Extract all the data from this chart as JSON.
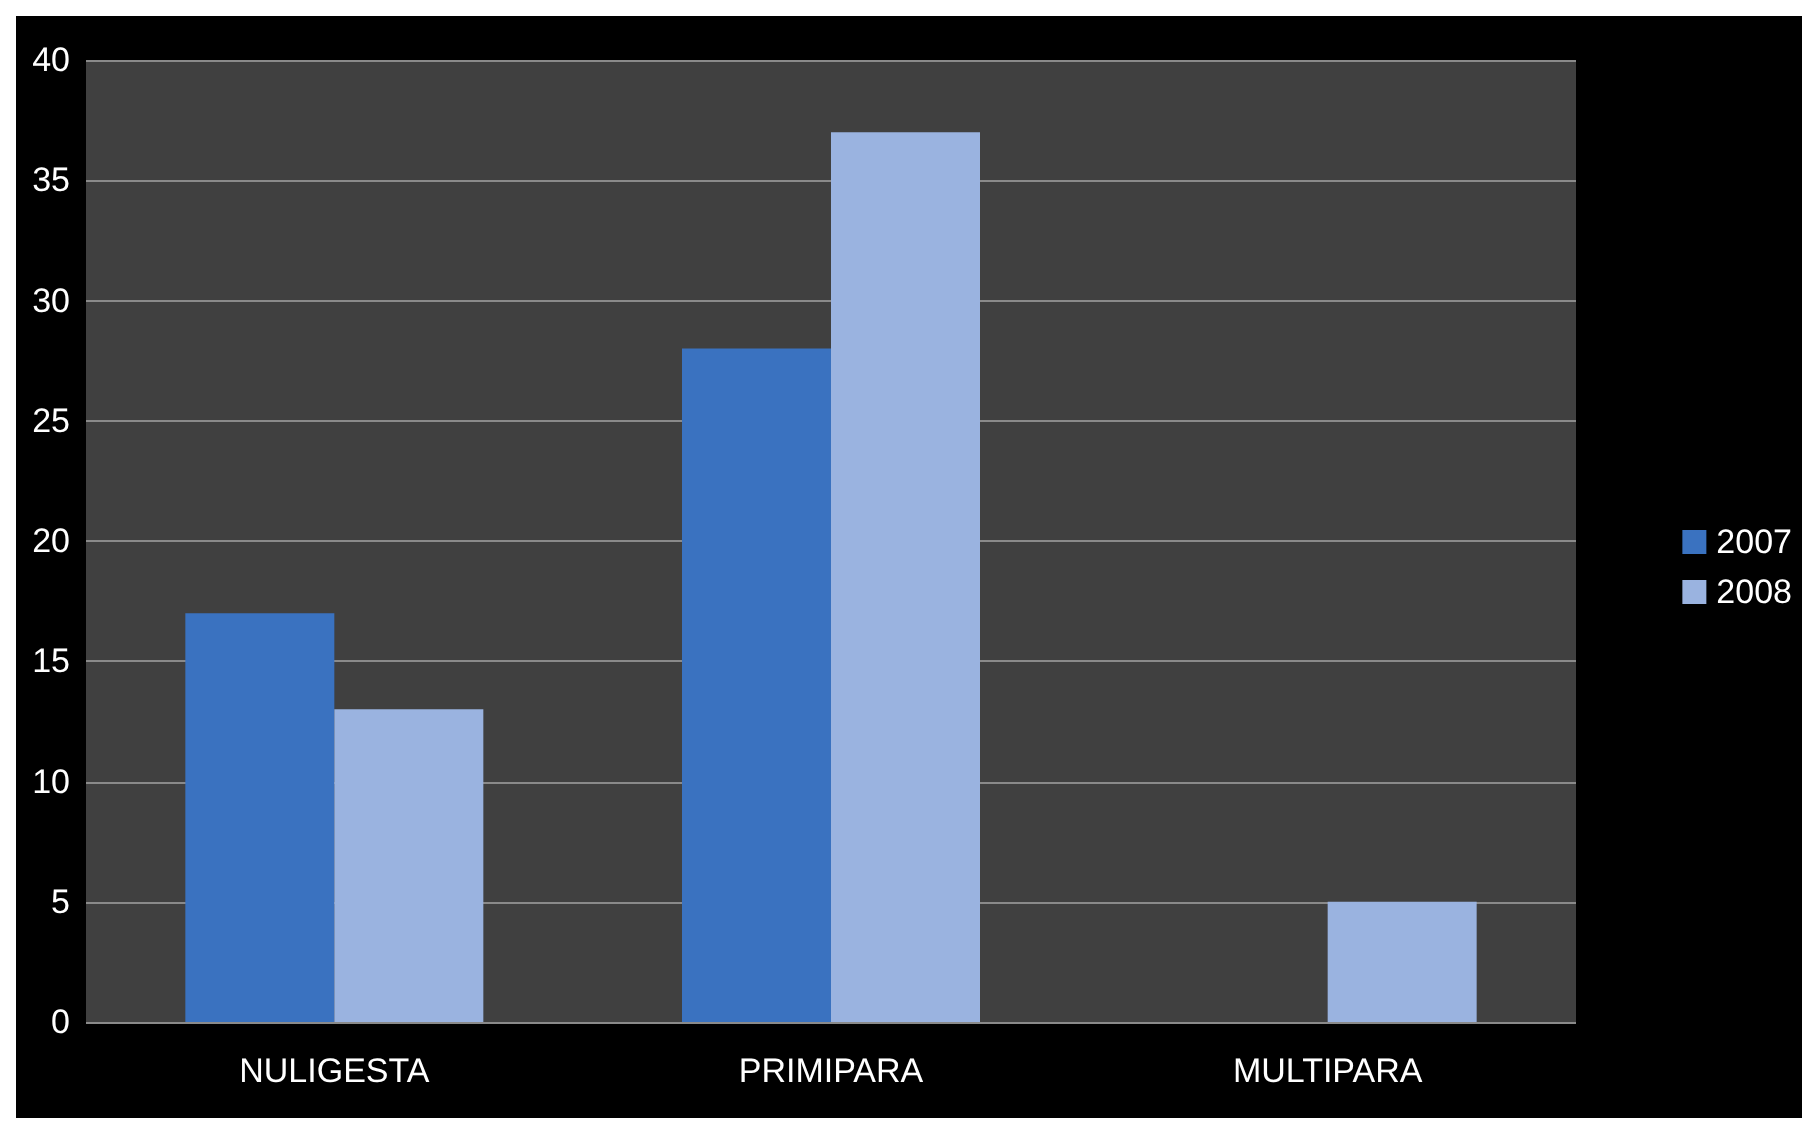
{
  "chart_data": {
    "type": "bar",
    "categories": [
      "NULIGESTA",
      "PRIMIPARA",
      "MULTIPARA"
    ],
    "series": [
      {
        "name": "2007",
        "color": "#3a72c0",
        "values": [
          17,
          28,
          null
        ]
      },
      {
        "name": "2008",
        "color": "#9ab3e0",
        "values": [
          13,
          37,
          5
        ]
      }
    ],
    "ylim": [
      0,
      40
    ],
    "yticks": [
      0,
      5,
      10,
      15,
      20,
      25,
      30,
      35,
      40
    ],
    "grid": "y",
    "legend": "right"
  }
}
